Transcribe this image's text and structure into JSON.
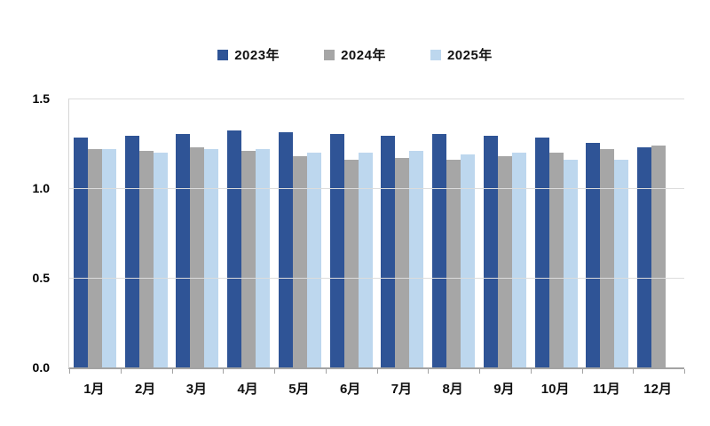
{
  "chart_data": {
    "type": "bar",
    "title": "",
    "xlabel": "",
    "ylabel": "",
    "categories": [
      "1月",
      "2月",
      "3月",
      "4月",
      "5月",
      "6月",
      "7月",
      "8月",
      "9月",
      "10月",
      "11月",
      "12月"
    ],
    "series": [
      {
        "name": "2023年",
        "color": "#2F5496",
        "values": [
          1.28,
          1.29,
          1.3,
          1.32,
          1.31,
          1.3,
          1.29,
          1.3,
          1.29,
          1.28,
          1.25,
          1.23
        ]
      },
      {
        "name": "2024年",
        "color": "#A6A6A6",
        "values": [
          1.22,
          1.21,
          1.23,
          1.21,
          1.18,
          1.16,
          1.17,
          1.16,
          1.18,
          1.2,
          1.22,
          1.24
        ]
      },
      {
        "name": "2025年",
        "color": "#BDD7EE",
        "values": [
          1.22,
          1.2,
          1.22,
          1.22,
          1.2,
          1.2,
          1.21,
          1.19,
          1.2,
          1.16,
          1.16,
          null
        ]
      }
    ],
    "ylim": [
      0,
      1.5
    ],
    "yticks": [
      "0.0",
      "0.5",
      "1.0",
      "1.5"
    ],
    "grid": true,
    "legend_position": "top",
    "grid_color": "#DCDCDC",
    "axis_color": "#A3A3A3",
    "background_color": "#FFFFFF"
  }
}
